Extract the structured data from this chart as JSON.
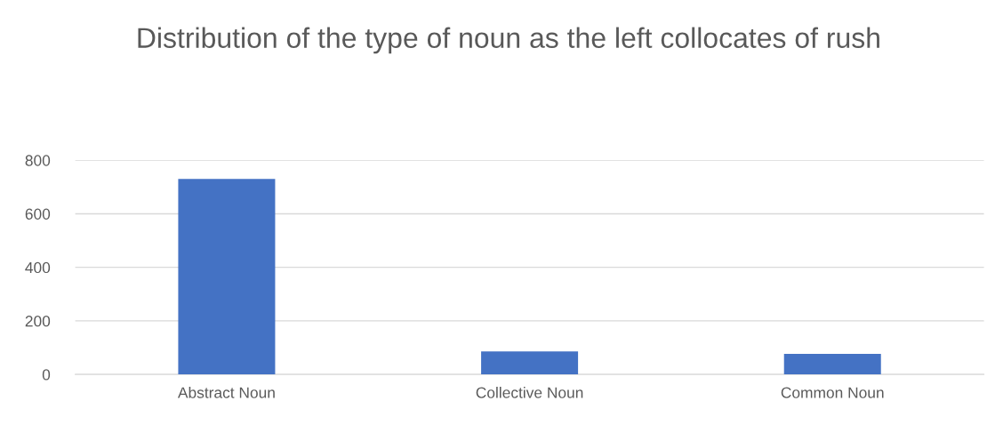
{
  "chart_data": {
    "type": "bar",
    "title": "Distribution of the type of noun as the left collocates of rush",
    "categories": [
      "Abstract Noun",
      "Collective Noun",
      "Common Noun"
    ],
    "values": [
      730,
      86,
      77
    ],
    "color": "#4472c4",
    "ylim": [
      0,
      800
    ],
    "yticks": [
      0,
      200,
      400,
      600,
      800
    ],
    "grid": "y"
  }
}
